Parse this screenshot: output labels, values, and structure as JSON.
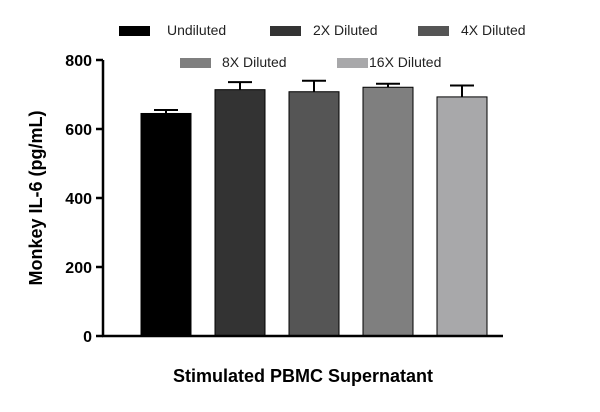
{
  "chart_data": {
    "type": "bar",
    "categories": [
      "Stimulated PBMC Supernatant"
    ],
    "series": [
      {
        "name": "Undiluted",
        "values": [
          645
        ],
        "error": [
          10
        ],
        "color": "#000000"
      },
      {
        "name": "2X Diluted",
        "values": [
          714
        ],
        "error": [
          22
        ],
        "color": "#333333"
      },
      {
        "name": "4X Diluted",
        "values": [
          708
        ],
        "error": [
          32
        ],
        "color": "#555555"
      },
      {
        "name": "8X Diluted",
        "values": [
          721
        ],
        "error": [
          10
        ],
        "color": "#7f7f7f"
      },
      {
        "name": "16X Diluted",
        "values": [
          693
        ],
        "error": [
          33
        ],
        "color": "#a8a8aa"
      }
    ],
    "title": "",
    "xlabel": "Stimulated PBMC Supernatant",
    "ylabel": "Monkey IL-6 (pg/mL)",
    "ylim": [
      0,
      800
    ],
    "yticks": [
      "0",
      "200",
      "400",
      "600",
      "800"
    ],
    "grid": false,
    "legend": "top"
  }
}
